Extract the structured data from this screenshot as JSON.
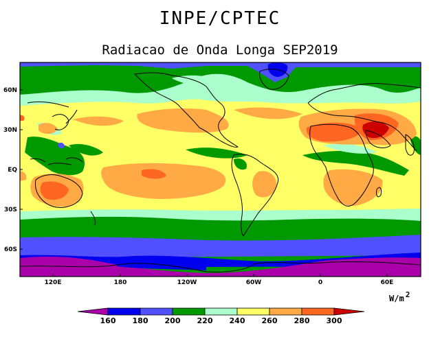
{
  "header": {
    "org": "INPE/CPTEC",
    "title": "Radiacao de Onda Longa SEP2019"
  },
  "map": {
    "lon_ticks": [
      "120E",
      "180",
      "120W",
      "60W",
      "0",
      "60E"
    ],
    "lat_ticks": [
      "60N",
      "30N",
      "EQ",
      "30S",
      "60S"
    ]
  },
  "colorbar": {
    "unit": "W/m",
    "unit_power": "2",
    "levels": [
      "160",
      "180",
      "200",
      "220",
      "240",
      "260",
      "280",
      "300"
    ],
    "colors": [
      "#aa00aa",
      "#0000ee",
      "#5050ff",
      "#009900",
      "#aaffcc",
      "#ffff66",
      "#ffaa44",
      "#ff6622",
      "#cc0000"
    ]
  }
}
